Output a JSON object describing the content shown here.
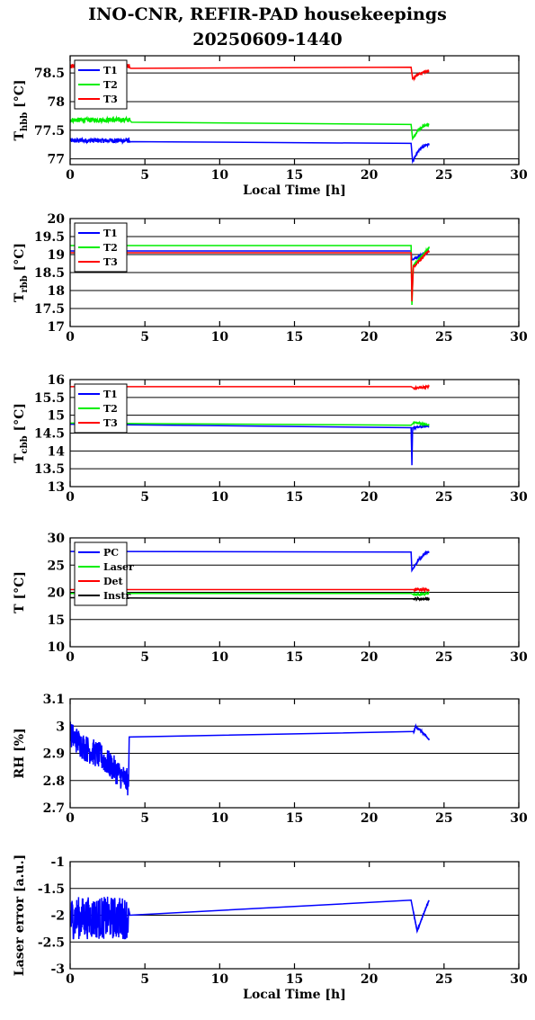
{
  "title": "INO-CNR, REFIR-PAD housekeepings",
  "subtitle": "20250609-1440",
  "chart_data": [
    {
      "type": "line",
      "ylabel": "T_hbb [°C]",
      "ylabel_main": "T",
      "ylabel_sub": "hbb",
      "ylabel_unit": " [°C]",
      "xlabel": "Local Time [h]",
      "xlim": [
        0,
        30
      ],
      "ylim": [
        76.9,
        78.8
      ],
      "yticks": [
        77,
        77.5,
        78,
        78.5
      ],
      "yticklabels": [
        "77",
        "77.5",
        "78",
        "78.5"
      ],
      "xticks": [
        0,
        5,
        10,
        15,
        20,
        25,
        30
      ],
      "grid": true,
      "legend": "top-left",
      "series": [
        {
          "name": "T1",
          "color": "#0000ff",
          "points": [
            [
              0,
              77.32
            ],
            [
              4,
              77.32
            ],
            [
              4.1,
              77.3
            ],
            [
              22.8,
              77.27
            ],
            [
              22.9,
              76.95
            ],
            [
              23.3,
              77.15
            ],
            [
              23.7,
              77.23
            ],
            [
              24,
              77.25
            ]
          ],
          "noisy": [
            0,
            4,
            0.04
          ]
        },
        {
          "name": "T2",
          "color": "#00ee00",
          "points": [
            [
              0,
              77.68
            ],
            [
              4,
              77.68
            ],
            [
              4.1,
              77.64
            ],
            [
              22.8,
              77.6
            ],
            [
              22.9,
              77.35
            ],
            [
              23.3,
              77.52
            ],
            [
              23.7,
              77.58
            ],
            [
              24,
              77.6
            ]
          ],
          "noisy": [
            0,
            4,
            0.04
          ]
        },
        {
          "name": "T3",
          "color": "#ff0000",
          "points": [
            [
              0,
              78.62
            ],
            [
              4,
              78.62
            ],
            [
              4.1,
              78.58
            ],
            [
              22.8,
              78.6
            ],
            [
              22.9,
              78.4
            ],
            [
              23.3,
              78.48
            ],
            [
              23.7,
              78.52
            ],
            [
              24,
              78.55
            ]
          ],
          "noisy": [
            0,
            4,
            0.04
          ]
        }
      ]
    },
    {
      "type": "line",
      "ylabel": "T_rbb [°C]",
      "ylabel_main": "T",
      "ylabel_sub": "rbb",
      "ylabel_unit": " [°C]",
      "xlabel": "",
      "xlim": [
        0,
        30
      ],
      "ylim": [
        17,
        20
      ],
      "yticks": [
        17,
        17.5,
        18,
        18.5,
        19,
        19.5,
        20
      ],
      "yticklabels": [
        "17",
        "17.5",
        "18",
        "18.5",
        "19",
        "19.5",
        "20"
      ],
      "xticks": [
        0,
        5,
        10,
        15,
        20,
        25,
        30
      ],
      "grid": true,
      "legend": "top-left",
      "series": [
        {
          "name": "T1",
          "color": "#0000ff",
          "points": [
            [
              0,
              19.1
            ],
            [
              22.8,
              19.1
            ],
            [
              22.85,
              18.85
            ],
            [
              23.3,
              18.95
            ],
            [
              24,
              19.1
            ]
          ]
        },
        {
          "name": "T2",
          "color": "#00ee00",
          "points": [
            [
              0,
              19.25
            ],
            [
              22.8,
              19.25
            ],
            [
              22.85,
              17.6
            ],
            [
              22.95,
              18.7
            ],
            [
              23.5,
              18.95
            ],
            [
              24,
              19.2
            ]
          ]
        },
        {
          "name": "T3",
          "color": "#ff0000",
          "points": [
            [
              0,
              19.05
            ],
            [
              22.8,
              19.05
            ],
            [
              22.85,
              17.7
            ],
            [
              22.95,
              18.65
            ],
            [
              23.5,
              18.9
            ],
            [
              24,
              19.1
            ]
          ]
        }
      ]
    },
    {
      "type": "line",
      "ylabel": "T_cbb [°C]",
      "ylabel_main": "T",
      "ylabel_sub": "cbb",
      "ylabel_unit": " [°C]",
      "xlabel": "",
      "xlim": [
        0,
        30
      ],
      "ylim": [
        13,
        16
      ],
      "yticks": [
        13,
        13.5,
        14,
        14.5,
        15,
        15.5,
        16
      ],
      "yticklabels": [
        "13",
        "13.5",
        "14",
        "14.5",
        "15",
        "15.5",
        "16"
      ],
      "xticks": [
        0,
        5,
        10,
        15,
        20,
        25,
        30
      ],
      "grid": true,
      "legend": "top-left",
      "series": [
        {
          "name": "T1",
          "color": "#0000ff",
          "points": [
            [
              0,
              14.75
            ],
            [
              12,
              14.7
            ],
            [
              22.8,
              14.65
            ],
            [
              22.85,
              13.6
            ],
            [
              22.9,
              14.65
            ],
            [
              24,
              14.7
            ]
          ]
        },
        {
          "name": "T2",
          "color": "#00ee00",
          "points": [
            [
              0,
              14.78
            ],
            [
              12,
              14.75
            ],
            [
              22.8,
              14.72
            ],
            [
              23,
              14.8
            ],
            [
              24,
              14.72
            ]
          ]
        },
        {
          "name": "T3",
          "color": "#ff0000",
          "points": [
            [
              0,
              15.8
            ],
            [
              22.8,
              15.8
            ],
            [
              23,
              15.75
            ],
            [
              23.5,
              15.78
            ],
            [
              24,
              15.8
            ]
          ]
        }
      ]
    },
    {
      "type": "line",
      "ylabel": "T [°C]",
      "ylabel_main": "T [°C]",
      "ylabel_sub": "",
      "ylabel_unit": "",
      "xlabel": "",
      "xlim": [
        0,
        30
      ],
      "ylim": [
        10,
        30
      ],
      "yticks": [
        10,
        15,
        20,
        25,
        30
      ],
      "yticklabels": [
        "10",
        "15",
        "20",
        "25",
        "30"
      ],
      "xticks": [
        0,
        5,
        10,
        15,
        20,
        25,
        30
      ],
      "grid": true,
      "legend": "top-left",
      "series": [
        {
          "name": "PC",
          "color": "#0000ff",
          "points": [
            [
              0,
              27.5
            ],
            [
              22.8,
              27.4
            ],
            [
              22.85,
              24
            ],
            [
              23.3,
              26
            ],
            [
              23.8,
              27.3
            ],
            [
              24,
              27.5
            ]
          ]
        },
        {
          "name": "Laser",
          "color": "#00ee00",
          "points": [
            [
              0,
              19.8
            ],
            [
              22.8,
              19.8
            ],
            [
              23,
              19.5
            ],
            [
              24,
              19.8
            ]
          ]
        },
        {
          "name": "Det",
          "color": "#ff0000",
          "points": [
            [
              0,
              20.5
            ],
            [
              22.8,
              20.5
            ],
            [
              24,
              20.5
            ]
          ]
        },
        {
          "name": "Instr",
          "color": "#000000",
          "points": [
            [
              0,
              19
            ],
            [
              10,
              18.9
            ],
            [
              22.8,
              18.8
            ],
            [
              24,
              18.8
            ]
          ]
        }
      ]
    },
    {
      "type": "line",
      "ylabel": "RH [%]",
      "ylabel_main": "RH [%]",
      "ylabel_sub": "",
      "ylabel_unit": "",
      "xlabel": "",
      "xlim": [
        0,
        30
      ],
      "ylim": [
        2.7,
        3.1
      ],
      "yticks": [
        2.7,
        2.8,
        2.9,
        3,
        3.1
      ],
      "yticklabels": [
        "2.7",
        "2.8",
        "2.9",
        "3",
        "3.1"
      ],
      "xticks": [
        0,
        5,
        10,
        15,
        20,
        25,
        30
      ],
      "grid": true,
      "legend": "none",
      "series": [
        {
          "name": "",
          "color": "#0000ff",
          "points": [
            [
              0,
              2.97
            ],
            [
              1,
              2.92
            ],
            [
              2,
              2.89
            ],
            [
              3,
              2.84
            ],
            [
              3.9,
              2.79
            ],
            [
              3.95,
              2.96
            ],
            [
              23,
              2.98
            ],
            [
              23.1,
              3.0
            ],
            [
              23.5,
              2.98
            ],
            [
              24,
              2.95
            ]
          ],
          "noisy": [
            0,
            3.9,
            0.05
          ]
        }
      ]
    },
    {
      "type": "line",
      "ylabel": "Laser error [a.u.]",
      "ylabel_main": "Laser error [a.u.]",
      "ylabel_sub": "",
      "ylabel_unit": "",
      "xlabel": "Local Time [h]",
      "xlim": [
        0,
        30
      ],
      "ylim": [
        -3,
        -1
      ],
      "yticks": [
        -3,
        -2.5,
        -2,
        -1.5,
        -1
      ],
      "yticklabels": [
        "-3",
        "-2.5",
        "-2",
        "-1.5",
        "-1"
      ],
      "xticks": [
        0,
        5,
        10,
        15,
        20,
        25,
        30
      ],
      "grid": true,
      "legend": "none",
      "series": [
        {
          "name": "",
          "color": "#0000ff",
          "points": [
            [
              0,
              -2.05
            ],
            [
              3.9,
              -2.05
            ],
            [
              4,
              -2.0
            ],
            [
              22.8,
              -1.72
            ],
            [
              23.2,
              -2.3
            ],
            [
              23.6,
              -2.0
            ],
            [
              24,
              -1.72
            ]
          ],
          "noisy": [
            0,
            3.9,
            0.4
          ]
        }
      ]
    }
  ]
}
